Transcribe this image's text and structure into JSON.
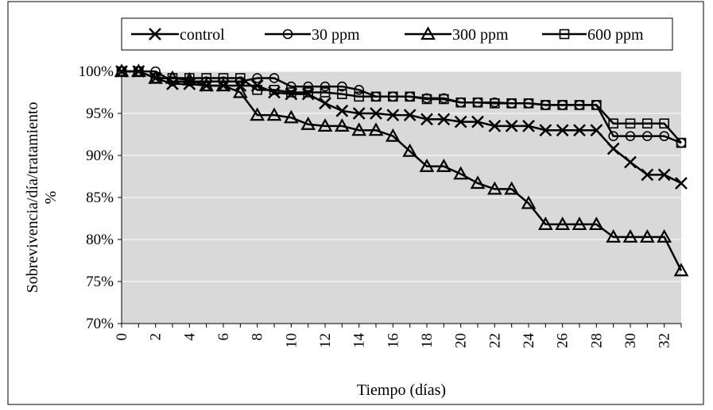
{
  "chart_data": {
    "type": "line",
    "title": "",
    "xlabel": "Tiempo (días)",
    "ylabel": "Sobrevivencia/día/tratamiento %",
    "ylabel_lines": [
      "Sobrevivencia/día/tratamiento",
      "%"
    ],
    "xlim": [
      0,
      33
    ],
    "ylim": [
      70,
      100
    ],
    "x_ticks": [
      0,
      2,
      4,
      6,
      8,
      10,
      12,
      14,
      16,
      18,
      20,
      22,
      24,
      26,
      28,
      30,
      32
    ],
    "y_ticks": [
      70,
      75,
      80,
      85,
      90,
      95,
      100
    ],
    "y_tick_labels": [
      "70%",
      "75%",
      "80%",
      "85%",
      "90%",
      "95%",
      "100%"
    ],
    "grid": "horizontal",
    "plot_background": "#d9d9d9",
    "legend_position": "top",
    "x": [
      0,
      1,
      2,
      3,
      4,
      5,
      6,
      7,
      8,
      9,
      10,
      11,
      12,
      13,
      14,
      15,
      16,
      17,
      18,
      19,
      20,
      21,
      22,
      23,
      24,
      25,
      26,
      27,
      28,
      29,
      30,
      31,
      32,
      33
    ],
    "series": [
      {
        "name": "control",
        "marker": "x",
        "color": "#000000",
        "values": [
          100,
          100,
          99.2,
          98.5,
          98.5,
          98.3,
          98.3,
          98.3,
          98.3,
          97.5,
          97.3,
          97.3,
          96.2,
          95.3,
          95.0,
          95.0,
          94.8,
          94.8,
          94.3,
          94.3,
          94.0,
          94.0,
          93.5,
          93.5,
          93.5,
          93.0,
          93.0,
          93.0,
          93.0,
          90.8,
          89.2,
          87.7,
          87.7,
          86.7
        ]
      },
      {
        "name": "30 ppm",
        "marker": "circle",
        "color": "#000000",
        "values": [
          100,
          100,
          100,
          98.8,
          98.8,
          98.8,
          98.8,
          98.8,
          99.2,
          99.2,
          98.2,
          98.2,
          98.2,
          98.2,
          97.8,
          97.0,
          97.0,
          97.0,
          96.8,
          96.8,
          96.3,
          96.3,
          96.3,
          96.2,
          96.2,
          96.0,
          96.0,
          96.0,
          96.0,
          92.3,
          92.3,
          92.3,
          92.3,
          91.5
        ]
      },
      {
        "name": "300 ppm",
        "marker": "triangle",
        "color": "#000000",
        "values": [
          100,
          100,
          99.2,
          99.2,
          99.0,
          98.3,
          98.3,
          97.5,
          94.8,
          94.8,
          94.5,
          93.7,
          93.5,
          93.5,
          93.0,
          93.0,
          92.3,
          90.5,
          88.7,
          88.7,
          87.8,
          86.7,
          86.0,
          86.0,
          84.3,
          81.8,
          81.8,
          81.8,
          81.8,
          80.3,
          80.3,
          80.3,
          80.3,
          76.3
        ]
      },
      {
        "name": "600 ppm",
        "marker": "square",
        "color": "#000000",
        "values": [
          100,
          100,
          99.2,
          99.2,
          99.2,
          99.2,
          99.2,
          99.2,
          97.8,
          97.8,
          97.5,
          97.5,
          97.5,
          97.3,
          97.0,
          97.0,
          97.0,
          97.0,
          96.7,
          96.7,
          96.3,
          96.3,
          96.2,
          96.2,
          96.2,
          96.0,
          96.0,
          96.0,
          96.0,
          93.8,
          93.8,
          93.8,
          93.8,
          91.5
        ]
      }
    ]
  }
}
